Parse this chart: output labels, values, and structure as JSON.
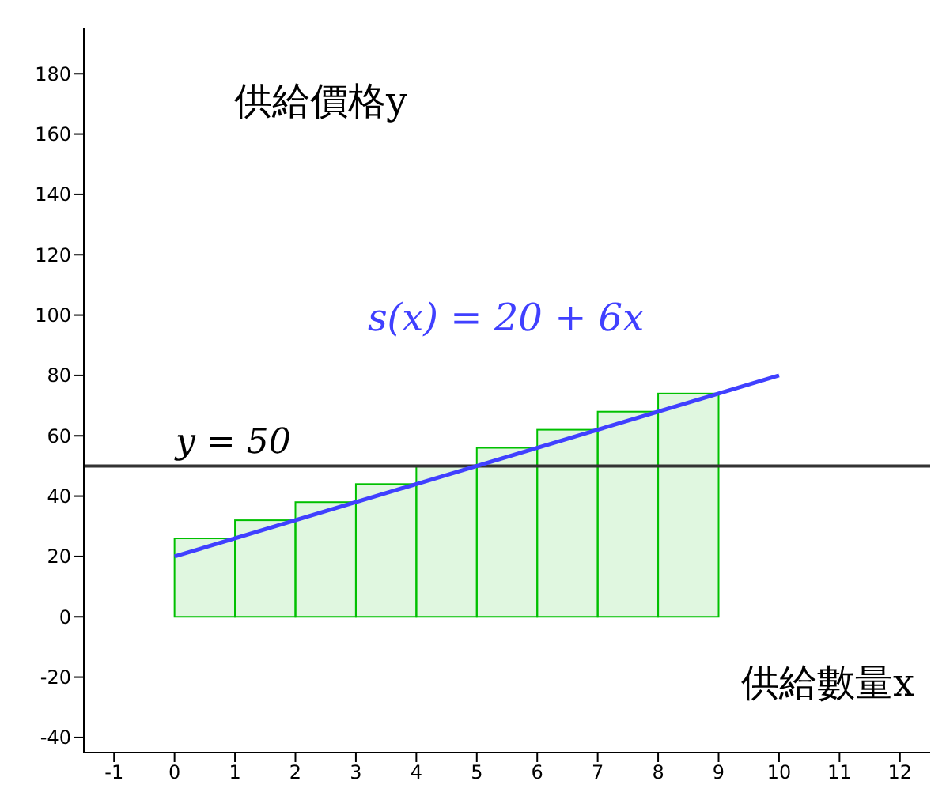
{
  "chart_data": {
    "type": "bar",
    "xlabel": "供給數量x",
    "ylabel": "供給價格y",
    "xlim": [
      -1.5,
      12.5
    ],
    "xticks": [
      -1,
      0,
      1,
      2,
      3,
      4,
      5,
      6,
      7,
      8,
      9,
      10,
      11,
      12
    ],
    "ylim": [
      -45,
      195
    ],
    "yticks": [
      -40,
      -20,
      0,
      20,
      40,
      60,
      80,
      100,
      120,
      140,
      160,
      180
    ],
    "series": [
      {
        "color": "#00c000",
        "x": [
          0.5,
          1.5,
          2.5,
          3.5,
          4.5,
          5.5,
          6.5,
          7.5,
          8.5
        ],
        "values": [
          26,
          32,
          38,
          44,
          50,
          56,
          62,
          68,
          74
        ]
      },
      {
        "type": "line",
        "name": "s(x) = 20 + 6x",
        "color": "#4040ff",
        "x": [
          0,
          10
        ],
        "values": [
          20,
          80
        ]
      }
    ],
    "ref_lines": [
      {
        "axis": "y",
        "value": 50,
        "label": "y = 50",
        "color": "#333333"
      }
    ],
    "grid": false,
    "legend": false,
    "marker": "none",
    "line_style": "solid"
  }
}
